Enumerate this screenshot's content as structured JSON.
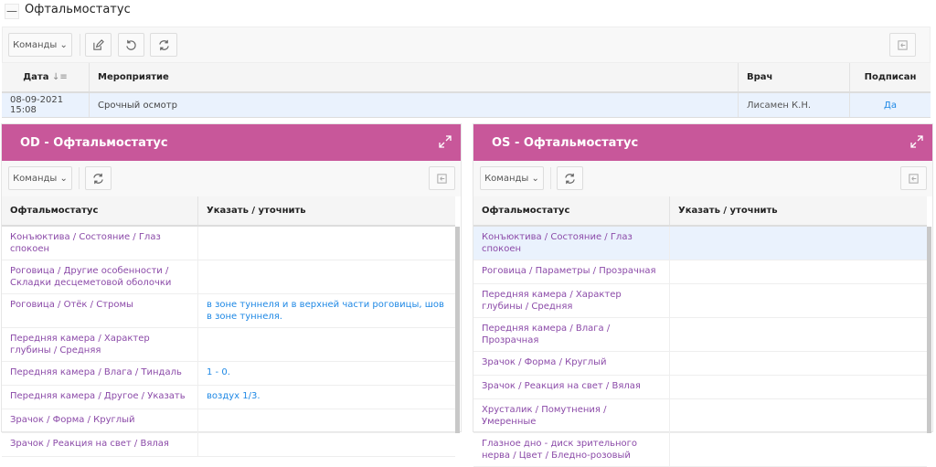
{
  "page": {
    "title": "Офтальмостатус",
    "collapse_label": "—"
  },
  "main": {
    "commands_label": "Команды",
    "columns": [
      "Дата",
      "Мероприятие",
      "Врач",
      "Подписан"
    ],
    "rows": [
      {
        "date": "08-09-2021 15:08",
        "event": "Срочный осмотр",
        "doctor": "Лисамен К.Н.",
        "signed": "Да"
      }
    ]
  },
  "od": {
    "title": "OD - Офтальмостатус",
    "commands_label": "Команды",
    "columns": [
      "Офтальмостатус",
      "Указать / уточнить"
    ],
    "rows": [
      {
        "status": "Конъюктива / Состояние / Глаз спокоен",
        "note": ""
      },
      {
        "status": "Роговица / Другие особенности / Складки десцеметовой оболочки",
        "note": ""
      },
      {
        "status": "Роговица / Отёк / Стромы",
        "note": "в зоне туннеля и в верхней части роговицы, шов в зоне туннеля."
      },
      {
        "status": "Передняя камера / Характер глубины / Средняя",
        "note": ""
      },
      {
        "status": "Передняя камера / Влага / Тиндаль",
        "note": "1 - 0."
      },
      {
        "status": "Передняя камера / Другое / Указать",
        "note": "воздух 1/3."
      },
      {
        "status": "Зрачок / Форма / Круглый",
        "note": ""
      },
      {
        "status": "Зрачок / Реакция на свет / Вялая",
        "note": ""
      }
    ]
  },
  "os": {
    "title": "OS - Офтальмостатус",
    "commands_label": "Команды",
    "columns": [
      "Офтальмостатус",
      "Указать / уточнить"
    ],
    "rows": [
      {
        "status": "Конъюктива / Состояние / Глаз спокоен",
        "note": ""
      },
      {
        "status": "Роговица / Параметры / Прозрачная",
        "note": ""
      },
      {
        "status": "Передняя камера / Характер глубины / Средняя",
        "note": ""
      },
      {
        "status": "Передняя камера / Влага / Прозрачная",
        "note": ""
      },
      {
        "status": "Зрачок / Форма / Круглый",
        "note": ""
      },
      {
        "status": "Зрачок / Реакция на свет / Вялая",
        "note": ""
      },
      {
        "status": "Хрусталик / Помутнения / Умеренные",
        "note": ""
      },
      {
        "status": "Глазное дно - диск зрительного нерва / Цвет / Бледно-розовый",
        "note": ""
      }
    ]
  },
  "colors": {
    "accent": "#c8579a",
    "link": "#1e88e5",
    "status_text": "#8b4aa8",
    "selected_row": "#eaf2fd"
  }
}
